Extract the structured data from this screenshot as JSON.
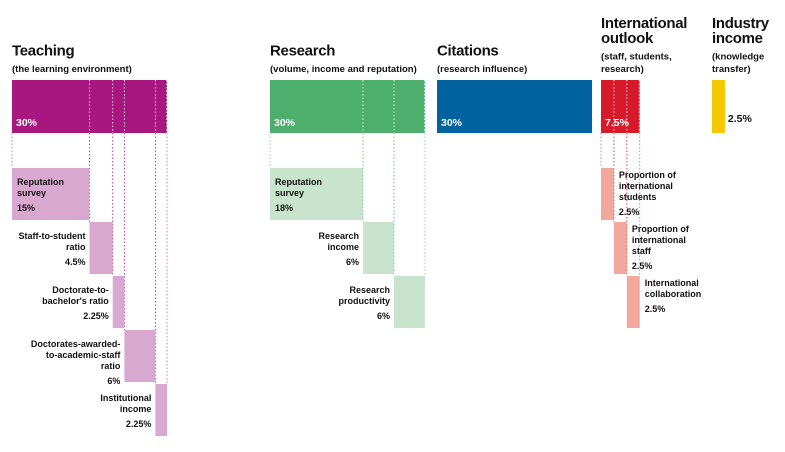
{
  "pillars": [
    {
      "title": [
        "Teaching"
      ],
      "subtitle": [
        "(the learning environment)"
      ],
      "weight": 30,
      "weight_label": "30%",
      "color": "#a8177f",
      "component_color": "#d9a8d0",
      "components": [
        {
          "label": [
            "Reputation",
            "survey"
          ],
          "weight": 15,
          "weight_label": "15%"
        },
        {
          "label": [
            "Staff-to-student",
            "ratio"
          ],
          "weight": 4.5,
          "weight_label": "4.5%"
        },
        {
          "label": [
            "Doctorate-to-",
            "bachelor's ratio"
          ],
          "weight": 2.25,
          "weight_label": "2.25%"
        },
        {
          "label": [
            "Doctorates-awarded-",
            "to-academic-staff",
            "ratio"
          ],
          "weight": 6,
          "weight_label": "6%"
        },
        {
          "label": [
            "Institutional",
            "income"
          ],
          "weight": 2.25,
          "weight_label": "2.25%"
        }
      ]
    },
    {
      "title": [
        "Research"
      ],
      "subtitle": [
        "(volume, income and reputation)"
      ],
      "weight": 30,
      "weight_label": "30%",
      "color": "#4caf6e",
      "component_color": "#c8e4cc",
      "components": [
        {
          "label": [
            "Reputation",
            "survey"
          ],
          "weight": 18,
          "weight_label": "18%"
        },
        {
          "label": [
            "Research",
            "income"
          ],
          "weight": 6,
          "weight_label": "6%"
        },
        {
          "label": [
            "Research",
            "productivity"
          ],
          "weight": 6,
          "weight_label": "6%"
        }
      ]
    },
    {
      "title": [
        "Citations"
      ],
      "subtitle": [
        "(research influence)"
      ],
      "weight": 30,
      "weight_label": "30%",
      "color": "#00629e",
      "component_color": "#9cc3de",
      "components": []
    },
    {
      "title": [
        "International",
        "outlook"
      ],
      "subtitle": [
        "(staff, students,",
        "research)"
      ],
      "weight": 7.5,
      "weight_label": "7.5%",
      "color": "#d7192c",
      "component_color": "#f2a89c",
      "components": [
        {
          "label": [
            "Proportion of",
            "international",
            "students"
          ],
          "weight": 2.5,
          "weight_label": "2.5%"
        },
        {
          "label": [
            "Proportion of",
            "international",
            "staff"
          ],
          "weight": 2.5,
          "weight_label": "2.5%"
        },
        {
          "label": [
            "International",
            "collaboration"
          ],
          "weight": 2.5,
          "weight_label": "2.5%"
        }
      ]
    },
    {
      "title": [
        "Industry",
        "income"
      ],
      "subtitle": [
        "(knowledge",
        "transfer)"
      ],
      "weight": 2.5,
      "weight_label": "2.5%",
      "color": "#f5c800",
      "component_color": "#f9e27a",
      "components": []
    }
  ]
}
